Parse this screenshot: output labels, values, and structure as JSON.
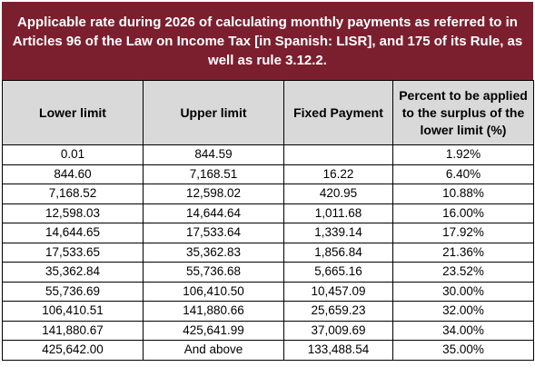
{
  "title": "Applicable rate during 2026 of calculating monthly payments as referred to in Articles 96 of the Law on Income Tax [in Spanish: LISR], and 175 of its Rule, as well as rule 3.12.2.",
  "headers": {
    "lower": "Lower limit",
    "upper": "Upper limit",
    "fixed": "Fixed Payment",
    "percent": "Percent to be applied to the surplus of the lower limit (%)"
  },
  "rows": [
    {
      "lower": "0.01",
      "upper": "844.59",
      "fixed": "",
      "percent": "1.92%"
    },
    {
      "lower": "844.60",
      "upper": "7,168.51",
      "fixed": "16.22",
      "percent": "6.40%"
    },
    {
      "lower": "7,168.52",
      "upper": "12,598.02",
      "fixed": "420.95",
      "percent": "10.88%"
    },
    {
      "lower": "12,598.03",
      "upper": "14,644.64",
      "fixed": "1,011.68",
      "percent": "16.00%"
    },
    {
      "lower": "14,644.65",
      "upper": "17,533.64",
      "fixed": "1,339.14",
      "percent": "17.92%"
    },
    {
      "lower": "17,533.65",
      "upper": "35,362.83",
      "fixed": "1,856.84",
      "percent": "21.36%"
    },
    {
      "lower": "35,362.84",
      "upper": "55,736.68",
      "fixed": "5,665.16",
      "percent": "23.52%"
    },
    {
      "lower": "55,736.69",
      "upper": "106,410.50",
      "fixed": "10,457.09",
      "percent": "30.00%"
    },
    {
      "lower": "106,410.51",
      "upper": "141,880.66",
      "fixed": "25,659.23",
      "percent": "32.00%"
    },
    {
      "lower": "141,880.67",
      "upper": "425,641.99",
      "fixed": "37,009.69",
      "percent": "34.00%"
    },
    {
      "lower": "425,642.00",
      "upper": "And above",
      "fixed": "133,488.54",
      "percent": "35.00%"
    }
  ],
  "colors": {
    "title_background": "#7b1f2f",
    "header_background": "#d9d9d9"
  }
}
